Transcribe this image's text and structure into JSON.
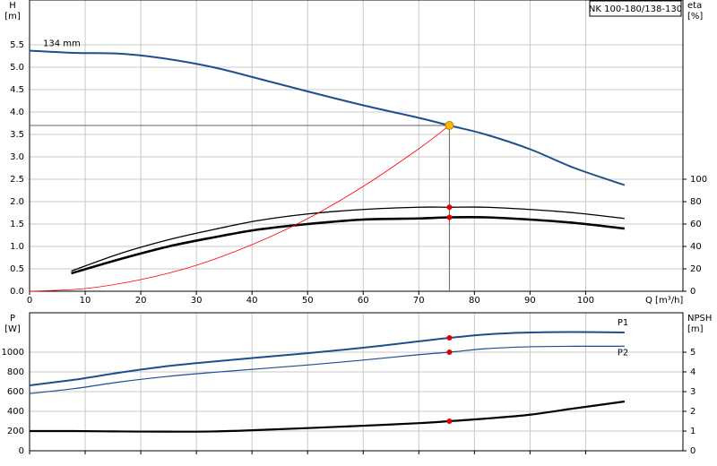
{
  "chart_data": [
    {
      "type": "line",
      "title": "NK 100-180/138-130",
      "ylabel": "H",
      "yunit": "[m]",
      "y2label": "eta",
      "y2unit": "[%]",
      "xlabel": "Q [m³/h]",
      "xlim": [
        0,
        117.5
      ],
      "xticks": [
        0,
        10,
        20,
        30,
        40,
        50,
        60,
        70,
        80,
        90,
        100
      ],
      "ylim": [
        0,
        6.5
      ],
      "yticks": [
        {
          "value": 0,
          "label": "0.0"
        },
        0.5,
        {
          "value": 1,
          "label": "1.0"
        },
        1.5,
        {
          "value": 2,
          "label": "2.0"
        },
        2.5,
        {
          "value": 3,
          "label": "3.0"
        },
        3.5,
        {
          "value": 4,
          "label": "4.0"
        },
        4.5,
        {
          "value": 5,
          "label": "5.0"
        },
        5.5
      ],
      "y2lim": [
        0,
        260
      ],
      "y2ticks": [
        0,
        20,
        40,
        60,
        80,
        100
      ],
      "grid": true,
      "series": [
        {
          "name": "134 mm",
          "color": "#1f4e8c",
          "x": [
            0,
            8,
            16.5,
            24.5,
            33,
            41,
            50,
            60,
            70,
            75.5,
            82,
            90,
            98,
            107
          ],
          "values": [
            5.37,
            5.32,
            5.3,
            5.19,
            5.0,
            4.75,
            4.46,
            4.15,
            3.87,
            3.7,
            3.5,
            3.17,
            2.75,
            2.37
          ]
        },
        {
          "color": "#000000",
          "axis": "y2",
          "x": [
            7.5,
            16.5,
            25,
            33,
            41,
            50,
            60,
            70,
            75.5,
            82,
            90,
            98,
            107
          ],
          "values": [
            18,
            34,
            46,
            55,
            63,
            69,
            73,
            75,
            75,
            75,
            73,
            70,
            65
          ]
        },
        {
          "color": "#000000",
          "axis": "y2",
          "x": [
            7.5,
            16.5,
            25,
            33,
            41,
            50,
            60,
            70,
            75.5,
            82,
            90,
            98,
            107
          ],
          "values": [
            16,
            29,
            40,
            48,
            55,
            60,
            64,
            65,
            66,
            66,
            64,
            61,
            56
          ]
        },
        {
          "color": "#ff0000",
          "x": [
            0,
            10,
            20,
            30,
            40,
            50,
            60,
            70,
            75.5
          ],
          "values": [
            0,
            0.06,
            0.26,
            0.58,
            1.04,
            1.62,
            2.34,
            3.18,
            3.7
          ]
        }
      ],
      "points": [
        {
          "x": 75.5,
          "y": 3.7,
          "color": "#f5b800"
        },
        {
          "x": 75.5,
          "y": 75,
          "axis": "y2",
          "color": "#e00000"
        },
        {
          "x": 75.5,
          "y": 66,
          "axis": "y2",
          "color": "#e00000"
        }
      ]
    },
    {
      "type": "line",
      "ylabel": "P",
      "yunit": "[W]",
      "y2label": "NPSH",
      "y2unit": "[m]",
      "xlim": [
        0,
        117.5
      ],
      "xticks": [
        0,
        10,
        20,
        30,
        40,
        50,
        60,
        70,
        80,
        90,
        100
      ],
      "ylim": [
        0,
        1400
      ],
      "yticks": [
        0,
        200,
        400,
        600,
        800,
        1000
      ],
      "y2lim": [
        0,
        7
      ],
      "y2ticks": [
        0,
        1,
        2,
        3,
        4,
        5
      ],
      "grid": true,
      "series": [
        {
          "name": "P1",
          "color": "#1f4e8c",
          "x": [
            0,
            8,
            16.5,
            25,
            33,
            41,
            50,
            60,
            70,
            75.5,
            82,
            90,
            98,
            107
          ],
          "values": [
            664,
            720,
            795,
            860,
            905,
            945,
            990,
            1045,
            1110,
            1145,
            1180,
            1200,
            1205,
            1200
          ]
        },
        {
          "name": "P2",
          "color": "#1f4e8c",
          "x": [
            0,
            8,
            16.5,
            25,
            33,
            41,
            50,
            60,
            70,
            75.5,
            82,
            90,
            98,
            107
          ],
          "values": [
            580,
            630,
            700,
            755,
            795,
            830,
            870,
            920,
            975,
            1000,
            1035,
            1055,
            1060,
            1060
          ]
        },
        {
          "color": "#000000",
          "axis": "y2",
          "x": [
            0,
            8,
            16.5,
            25,
            33,
            41,
            50,
            60,
            70,
            75.5,
            82,
            90,
            98,
            107
          ],
          "values": [
            1.0,
            1.0,
            0.98,
            0.97,
            0.98,
            1.05,
            1.15,
            1.27,
            1.4,
            1.5,
            1.63,
            1.83,
            2.15,
            2.5
          ]
        }
      ],
      "points": [
        {
          "x": 75.5,
          "y": 1145,
          "color": "#e00000"
        },
        {
          "x": 75.5,
          "y": 1000,
          "color": "#e00000"
        },
        {
          "x": 75.5,
          "y": 1.5,
          "axis": "y2",
          "color": "#e00000"
        }
      ]
    }
  ]
}
